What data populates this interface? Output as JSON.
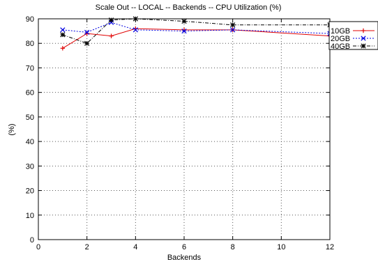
{
  "chart_data": {
    "type": "line",
    "title": "Scale Out -- LOCAL -- Backends -- CPU Utilization (%)",
    "xlabel": "Backends",
    "ylabel": "(%)",
    "xlim": [
      0,
      12
    ],
    "ylim": [
      0,
      90
    ],
    "xticks": [
      0,
      2,
      4,
      6,
      8,
      10,
      12
    ],
    "yticks": [
      0,
      10,
      20,
      30,
      40,
      50,
      60,
      70,
      80,
      90
    ],
    "grid": true,
    "legend_position": "top-right",
    "series": [
      {
        "name": "10GB",
        "color": "#e00000",
        "marker": "plus",
        "dash": "solid",
        "x": [
          1,
          2,
          3,
          4,
          6,
          8,
          12
        ],
        "y": [
          78,
          84,
          83,
          86,
          85.5,
          85.5,
          83
        ]
      },
      {
        "name": "20GB",
        "color": "#0000e0",
        "marker": "x",
        "dash": "dotted",
        "x": [
          1,
          2,
          3,
          4,
          6,
          8,
          12
        ],
        "y": [
          85.5,
          84.5,
          88.5,
          85.5,
          85,
          85.5,
          84
        ]
      },
      {
        "name": "40GB",
        "color": "#000000",
        "marker": "star",
        "dash": "dashdot",
        "x": [
          1,
          2,
          3,
          4,
          6,
          8,
          12
        ],
        "y": [
          83.5,
          80,
          89.5,
          90,
          89,
          87.5,
          87.5
        ]
      }
    ]
  }
}
